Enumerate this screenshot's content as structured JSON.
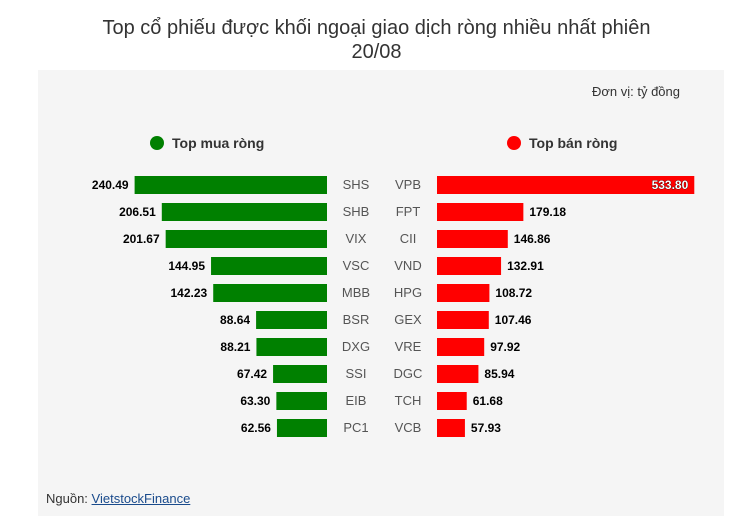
{
  "title_line1": "Top cổ phiếu được khối ngoại giao dịch ròng nhiều nhất phiên",
  "title_line2": "20/08",
  "unit_label": "Đơn vị: tỷ đồng",
  "source_label": "Nguồn: ",
  "source_link": "VietstockFinance",
  "colors": {
    "buy": "#008000",
    "sell": "#ff0000",
    "panel": "#f5f5f5"
  },
  "chart_data": {
    "type": "bar",
    "orientation": "horizontal",
    "series": [
      {
        "name": "Top mua ròng",
        "color": "#008000",
        "categories": [
          "SHS",
          "SHB",
          "VIX",
          "VSC",
          "MBB",
          "BSR",
          "DXG",
          "SSI",
          "EIB",
          "PC1"
        ],
        "values": [
          240.49,
          206.51,
          201.67,
          144.95,
          142.23,
          88.64,
          88.21,
          67.42,
          63.3,
          62.56
        ],
        "labels": [
          "240.49",
          "206.51",
          "201.67",
          "144.95",
          "142.23",
          "88.64",
          "88.21",
          "67.42",
          "63.30",
          "62.56"
        ]
      },
      {
        "name": "Top bán ròng",
        "color": "#ff0000",
        "categories": [
          "VPB",
          "FPT",
          "CII",
          "VND",
          "HPG",
          "GEX",
          "VRE",
          "DGC",
          "TCH",
          "VCB"
        ],
        "values": [
          533.8,
          179.18,
          146.86,
          132.91,
          108.72,
          107.46,
          97.92,
          85.94,
          61.68,
          57.93
        ],
        "labels": [
          "533.80",
          "179.18",
          "146.86",
          "132.91",
          "108.72",
          "107.46",
          "97.92",
          "85.94",
          "61.68",
          "57.93"
        ]
      }
    ]
  }
}
